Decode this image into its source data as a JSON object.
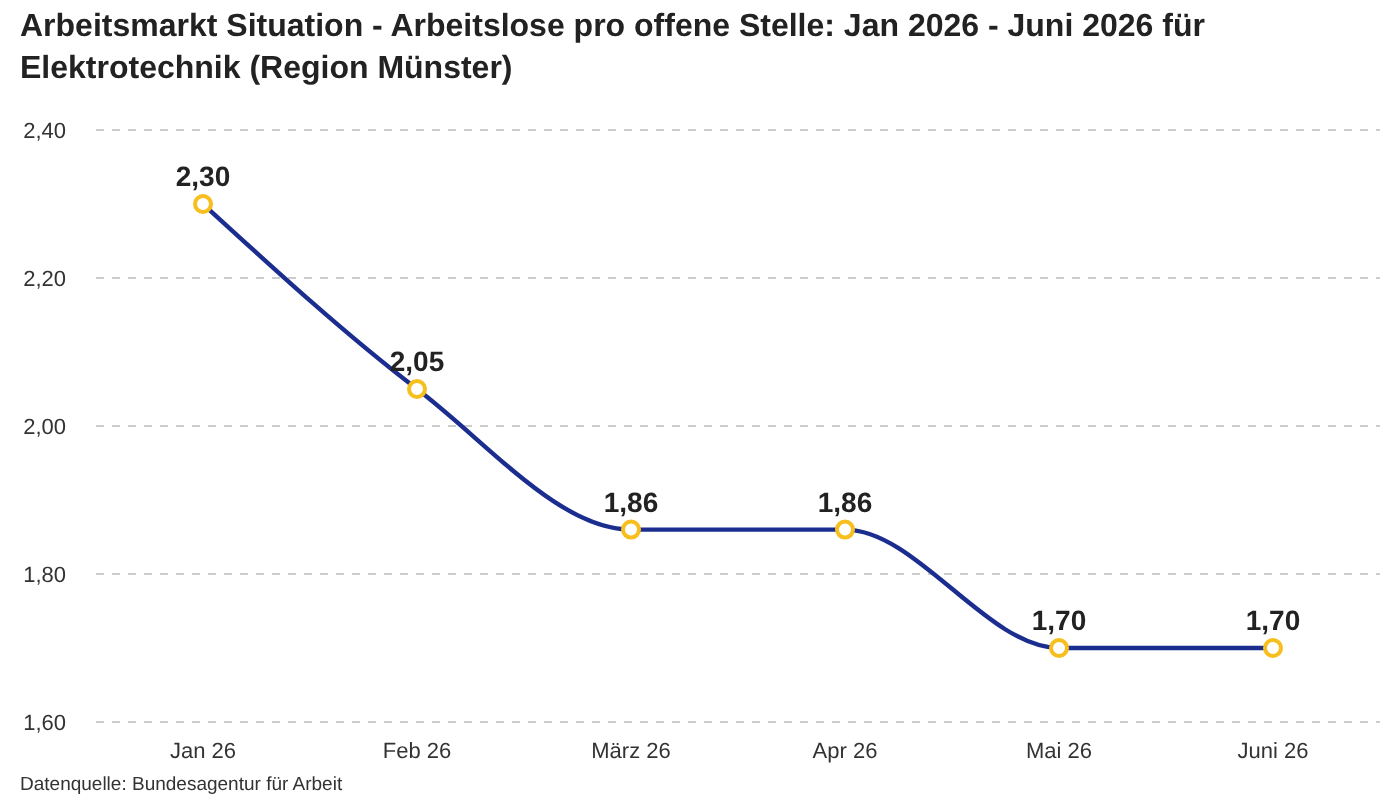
{
  "chart_data": {
    "type": "line",
    "title": "Arbeitsmarkt Situation - Arbeitslose pro offene Stelle: Jan 2026 - Juni 2026 für Elektrotechnik (Region Münster)",
    "annotations": [
      "Datenquelle: Bundesagentur für Arbeit"
    ],
    "categories": [
      "Jan 26",
      "Feb 26",
      "März 26",
      "Apr 26",
      "Mai 26",
      "Juni 26"
    ],
    "values": [
      2.3,
      2.05,
      1.86,
      1.86,
      1.7,
      1.7
    ],
    "value_labels": [
      "2,30",
      "2,05",
      "1,86",
      "1,86",
      "1,70",
      "1,70"
    ],
    "color": "#1b2d8f",
    "ylim": [
      1.6,
      2.4
    ],
    "yticks": [
      {
        "value": 1.6,
        "label": "1,60"
      },
      {
        "value": 1.8,
        "label": "1,80"
      },
      {
        "value": 2.0,
        "label": "2,00"
      },
      {
        "value": 2.2,
        "label": "2,20"
      },
      {
        "value": 2.4,
        "label": "2,40"
      }
    ],
    "grid": "y",
    "marker": "circle",
    "line_style": "solid"
  }
}
